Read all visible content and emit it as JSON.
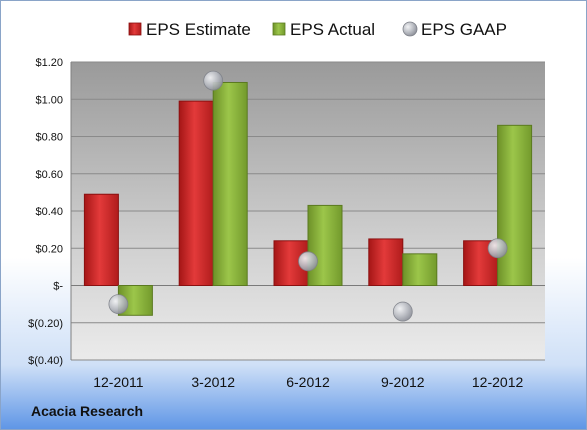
{
  "chart_data": {
    "type": "bar",
    "categories": [
      "12-2011",
      "3-2012",
      "6-2012",
      "9-2012",
      "12-2012"
    ],
    "series": [
      {
        "name": "EPS Estimate",
        "kind": "bar",
        "color": "#d42a2a",
        "values": [
          0.49,
          0.99,
          0.24,
          0.25,
          0.24
        ]
      },
      {
        "name": "EPS Actual",
        "kind": "bar",
        "color": "#8fb83b",
        "values": [
          -0.16,
          1.09,
          0.43,
          0.17,
          0.86
        ]
      },
      {
        "name": "EPS GAAP",
        "kind": "marker",
        "color": "#b8bcc4",
        "values": [
          -0.1,
          1.1,
          0.13,
          -0.14,
          0.2
        ]
      }
    ],
    "ylim": [
      -0.4,
      1.2
    ],
    "yticks": [
      {
        "value": 1.2,
        "label": "$1.20"
      },
      {
        "value": 1.0,
        "label": "$1.00"
      },
      {
        "value": 0.8,
        "label": "$0.80"
      },
      {
        "value": 0.6,
        "label": "$0.60"
      },
      {
        "value": 0.4,
        "label": "$0.40"
      },
      {
        "value": 0.2,
        "label": "$0.20"
      },
      {
        "value": 0.0,
        "label": "$-"
      },
      {
        "value": -0.2,
        "label": "$(0.20)"
      },
      {
        "value": -0.4,
        "label": "$(0.40)"
      }
    ],
    "grid": true,
    "legend": "top"
  },
  "company": "Acacia Research"
}
